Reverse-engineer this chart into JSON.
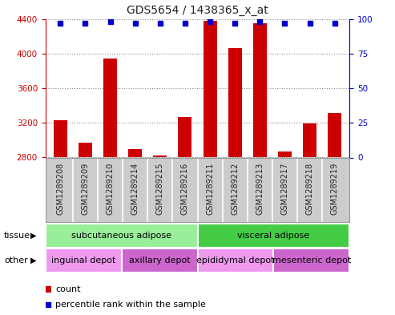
{
  "title": "GDS5654 / 1438365_x_at",
  "samples": [
    "GSM1289208",
    "GSM1289209",
    "GSM1289210",
    "GSM1289214",
    "GSM1289215",
    "GSM1289216",
    "GSM1289211",
    "GSM1289212",
    "GSM1289213",
    "GSM1289217",
    "GSM1289218",
    "GSM1289219"
  ],
  "counts": [
    3230,
    2970,
    3940,
    2900,
    2820,
    3270,
    4380,
    4060,
    4350,
    2870,
    3190,
    3310
  ],
  "percentiles": [
    97,
    97,
    98,
    97,
    97,
    97,
    98,
    97,
    98,
    97,
    97,
    97
  ],
  "ylim_left": [
    2800,
    4400
  ],
  "ylim_right": [
    0,
    100
  ],
  "yticks_left": [
    2800,
    3200,
    3600,
    4000,
    4400
  ],
  "yticks_right": [
    0,
    25,
    50,
    75,
    100
  ],
  "bar_color": "#cc0000",
  "dot_color": "#0000cc",
  "tissue_groups": [
    {
      "label": "subcutaneous adipose",
      "start": 0,
      "end": 6,
      "color": "#99ee99"
    },
    {
      "label": "visceral adipose",
      "start": 6,
      "end": 12,
      "color": "#44cc44"
    }
  ],
  "other_groups": [
    {
      "label": "inguinal depot",
      "start": 0,
      "end": 3,
      "color": "#ee99ee"
    },
    {
      "label": "axillary depot",
      "start": 3,
      "end": 6,
      "color": "#cc66cc"
    },
    {
      "label": "epididymal depot",
      "start": 6,
      "end": 9,
      "color": "#ee99ee"
    },
    {
      "label": "mesenteric depot",
      "start": 9,
      "end": 12,
      "color": "#cc66cc"
    }
  ],
  "tissue_label": "tissue",
  "other_label": "other",
  "legend_count_label": "count",
  "legend_pct_label": "percentile rank within the sample",
  "background_color": "#ffffff",
  "grid_color": "#888888",
  "left_axis_color": "#cc0000",
  "right_axis_color": "#0000cc",
  "xticklabel_bg": "#cccccc",
  "xticklabel_fontsize": 7,
  "bar_bottom": 2800
}
